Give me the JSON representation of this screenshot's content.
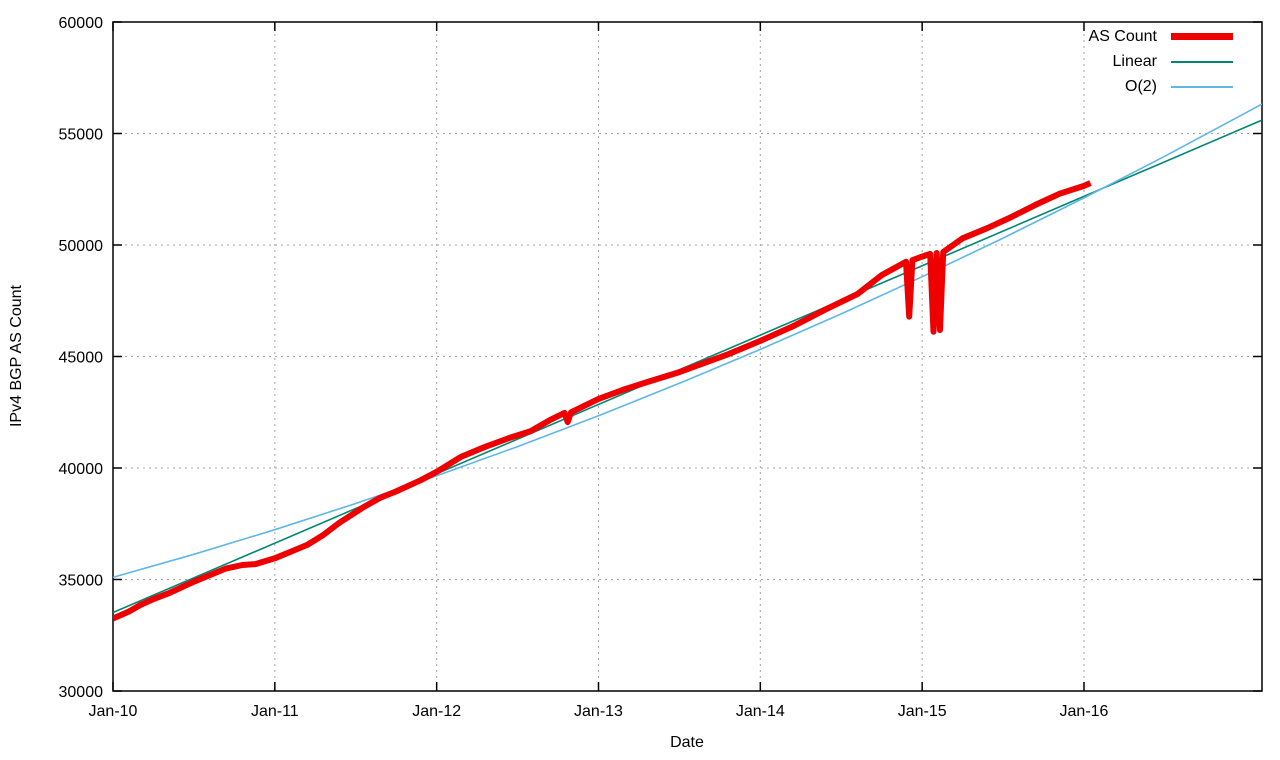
{
  "chart_data": {
    "type": "line",
    "xlabel": "Date",
    "ylabel": "IPv4 BGP AS Count",
    "x_tick_labels": [
      "Jan-10",
      "Jan-11",
      "Jan-12",
      "Jan-13",
      "Jan-14",
      "Jan-15",
      "Jan-16"
    ],
    "x_tick_positions_years": [
      0,
      1,
      2,
      3,
      4,
      5,
      6
    ],
    "xlim_years": [
      0,
      7.1
    ],
    "ylim": [
      30000,
      60000
    ],
    "y_ticks": [
      30000,
      35000,
      40000,
      45000,
      50000,
      55000,
      60000
    ],
    "grid": "dotted",
    "legend_position": "top-right",
    "grid_color": "#a3a3a3",
    "axis_color": "#000000",
    "series": [
      {
        "name": "AS Count",
        "color": "#ef0000",
        "width": 6,
        "points": [
          [
            0.0,
            33250
          ],
          [
            0.1,
            33570
          ],
          [
            0.17,
            33860
          ],
          [
            0.25,
            34120
          ],
          [
            0.35,
            34400
          ],
          [
            0.5,
            34900
          ],
          [
            0.6,
            35200
          ],
          [
            0.7,
            35500
          ],
          [
            0.8,
            35650
          ],
          [
            0.88,
            35690
          ],
          [
            1.0,
            35950
          ],
          [
            1.1,
            36250
          ],
          [
            1.2,
            36550
          ],
          [
            1.3,
            37000
          ],
          [
            1.4,
            37550
          ],
          [
            1.55,
            38250
          ],
          [
            1.65,
            38660
          ],
          [
            1.75,
            38950
          ],
          [
            1.9,
            39450
          ],
          [
            2.0,
            39830
          ],
          [
            2.15,
            40500
          ],
          [
            2.3,
            40950
          ],
          [
            2.45,
            41350
          ],
          [
            2.58,
            41650
          ],
          [
            2.7,
            42150
          ],
          [
            2.79,
            42470
          ],
          [
            2.81,
            42060
          ],
          [
            2.83,
            42500
          ],
          [
            3.0,
            43100
          ],
          [
            3.15,
            43500
          ],
          [
            3.3,
            43850
          ],
          [
            3.5,
            44300
          ],
          [
            3.65,
            44700
          ],
          [
            3.8,
            45100
          ],
          [
            4.0,
            45700
          ],
          [
            4.2,
            46350
          ],
          [
            4.4,
            47100
          ],
          [
            4.6,
            47800
          ],
          [
            4.75,
            48650
          ],
          [
            4.85,
            49050
          ],
          [
            4.9,
            49250
          ],
          [
            4.92,
            46790
          ],
          [
            4.94,
            49320
          ],
          [
            5.0,
            49480
          ],
          [
            5.05,
            49600
          ],
          [
            5.07,
            46110
          ],
          [
            5.09,
            49640
          ],
          [
            5.11,
            46190
          ],
          [
            5.13,
            49680
          ],
          [
            5.25,
            50300
          ],
          [
            5.4,
            50750
          ],
          [
            5.55,
            51250
          ],
          [
            5.7,
            51800
          ],
          [
            5.85,
            52300
          ],
          [
            6.0,
            52650
          ],
          [
            6.04,
            52780
          ]
        ]
      },
      {
        "name": "Linear",
        "color": "#008774",
        "width": 1.6,
        "points": [
          [
            0,
            33520
          ],
          [
            7.1,
            55600
          ]
        ]
      },
      {
        "name": "O(2)",
        "color": "#5fb6e8",
        "width": 1.6,
        "points": [
          [
            0.0,
            35100
          ],
          [
            0.5,
            36130
          ],
          [
            1.0,
            37235
          ],
          [
            1.5,
            38410
          ],
          [
            2.0,
            39650
          ],
          [
            2.5,
            40960
          ],
          [
            3.0,
            42340
          ],
          [
            3.5,
            43800
          ],
          [
            4.0,
            45320
          ],
          [
            4.5,
            46910
          ],
          [
            5.0,
            48580
          ],
          [
            5.5,
            50310
          ],
          [
            6.0,
            52110
          ],
          [
            6.5,
            53980
          ],
          [
            7.0,
            55930
          ],
          [
            7.1,
            56320
          ]
        ]
      }
    ]
  }
}
